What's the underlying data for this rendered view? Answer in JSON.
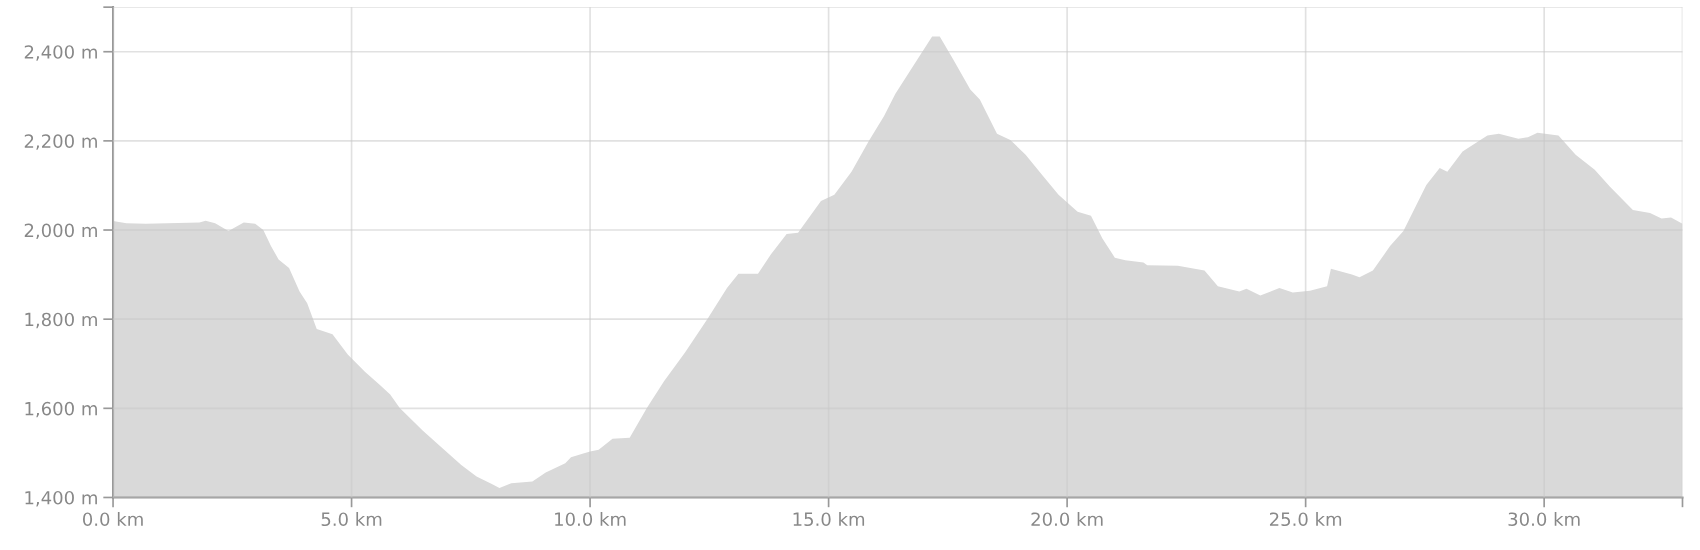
{
  "chart_data": {
    "type": "area",
    "x": [
      0,
      0.28,
      0.69,
      1.81,
      1.94,
      2.14,
      2.42,
      2.74,
      2.98,
      3.15,
      3.31,
      3.47,
      3.69,
      3.91,
      4.07,
      4.27,
      4.6,
      4.92,
      5.28,
      5.6,
      5.81,
      6.01,
      6.49,
      6.9,
      7.3,
      7.62,
      7.94,
      8.1,
      8.35,
      8.79,
      9.07,
      9.48,
      9.6,
      9.84,
      10.0,
      10.18,
      10.47,
      10.83,
      11.19,
      11.55,
      11.99,
      12.47,
      12.87,
      13.11,
      13.52,
      13.8,
      14.12,
      14.36,
      14.84,
      15.12,
      15.48,
      15.84,
      16.16,
      16.4,
      16.81,
      17.17,
      17.33,
      17.61,
      17.97,
      18.17,
      18.53,
      18.81,
      19.13,
      19.49,
      19.82,
      20.22,
      20.5,
      20.74,
      21.0,
      21.22,
      21.6,
      21.68,
      22.32,
      22.88,
      23.16,
      23.61,
      23.76,
      24.05,
      24.45,
      24.73,
      25.09,
      25.45,
      25.53,
      25.97,
      26.13,
      26.41,
      26.77,
      27.05,
      27.53,
      27.81,
      27.97,
      28.29,
      28.81,
      29.05,
      29.46,
      29.66,
      29.86,
      30.02,
      30.3,
      30.66,
      31.06,
      31.38,
      31.86,
      32.22,
      32.46,
      32.66,
      32.9
    ],
    "series": [
      {
        "color": "#d9d9d9",
        "values": [
          2020,
          2015,
          2014,
          2017,
          2021,
          2015,
          1998,
          2017,
          2014,
          2000,
          1964,
          1934,
          1915,
          1862,
          1836,
          1778,
          1766,
          1721,
          1682,
          1652,
          1631,
          1601,
          1550,
          1511,
          1473,
          1447,
          1430,
          1421,
          1432,
          1436,
          1456,
          1477,
          1490,
          1498,
          1503,
          1507,
          1532,
          1534,
          1601,
          1661,
          1725,
          1802,
          1870,
          1902,
          1902,
          1947,
          1991,
          1994,
          2065,
          2079,
          2131,
          2199,
          2255,
          2306,
          2374,
          2434,
          2434,
          2383,
          2315,
          2293,
          2216,
          2202,
          2169,
          2122,
          2079,
          2041,
          2032,
          1981,
          1938,
          1932,
          1927,
          1921,
          1920,
          1909,
          1874,
          1862,
          1868,
          1853,
          1870,
          1860,
          1864,
          1874,
          1913,
          1900,
          1894,
          1909,
          1964,
          1998,
          2101,
          2139,
          2131,
          2176,
          2212,
          2216,
          2205,
          2208,
          2218,
          2216,
          2212,
          2169,
          2135,
          2097,
          2045,
          2038,
          2026,
          2028,
          2014
        ]
      }
    ],
    "xlim": [
      0,
      32.9
    ],
    "ylim": [
      1400,
      2500
    ],
    "xticks": [
      {
        "value": 0,
        "label": "0.0 km"
      },
      {
        "value": 5,
        "label": "5.0 km"
      },
      {
        "value": 10,
        "label": "10.0 km"
      },
      {
        "value": 15,
        "label": "15.0 km"
      },
      {
        "value": 20,
        "label": "20.0 km"
      },
      {
        "value": 25,
        "label": "25.0 km"
      },
      {
        "value": 30,
        "label": "30.0 km"
      },
      {
        "value": 32.9,
        "label": null
      }
    ],
    "yticks": [
      {
        "value": 1400,
        "label": "1,400 m"
      },
      {
        "value": 1600,
        "label": "1,600 m"
      },
      {
        "value": 1800,
        "label": "1,800 m"
      },
      {
        "value": 2000,
        "label": "2,000 m"
      },
      {
        "value": 2200,
        "label": "2,200 m"
      },
      {
        "value": 2400,
        "label": "2,400 m"
      },
      {
        "value": 2500,
        "label": null
      }
    ],
    "grid": true
  }
}
